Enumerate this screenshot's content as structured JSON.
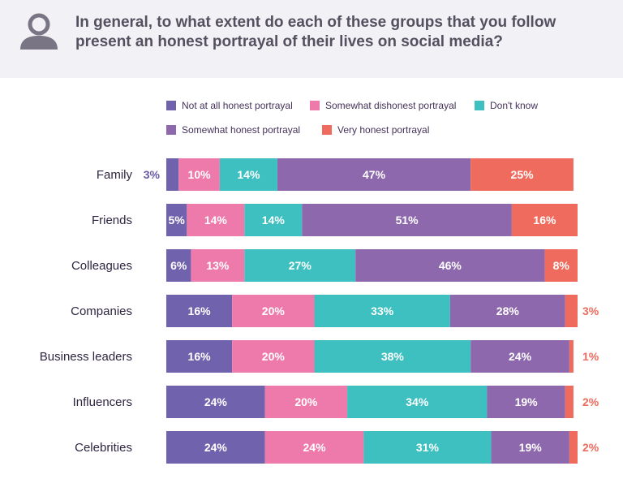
{
  "title": "In general, to what extent do each of these groups that you follow present an honest portrayal of their lives on social media?",
  "icons": {
    "header": "person-icon"
  },
  "colors": {
    "not_at_all": "#7062ad",
    "somewhat_dishonest": "#ee7aab",
    "dont_know": "#3ec0c0",
    "somewhat_honest": "#8e68ad",
    "very_honest": "#ef6b5e",
    "outside_label_dark": "#6a5aa5",
    "outside_label_red": "#ef6b5e"
  },
  "chart_data": {
    "type": "bar",
    "orientation": "horizontal",
    "stacked": true,
    "stacked_100": true,
    "title": "In general, to what extent do each of these groups that you follow present an honest portrayal of their lives on social media?",
    "legend_position": "top",
    "grid": false,
    "xlim": [
      0,
      100
    ],
    "categories": [
      "Family",
      "Friends",
      "Colleagues",
      "Companies",
      "Business leaders",
      "Influencers",
      "Celebrities"
    ],
    "series": [
      {
        "name": "Not at all honest portrayal",
        "key": "not_at_all",
        "values": [
          3,
          5,
          6,
          16,
          16,
          24,
          24
        ]
      },
      {
        "name": "Somewhat dishonest portrayal",
        "key": "somewhat_dishonest",
        "values": [
          10,
          14,
          13,
          20,
          20,
          20,
          24
        ]
      },
      {
        "name": "Don't know",
        "key": "dont_know",
        "values": [
          14,
          14,
          27,
          33,
          38,
          34,
          31
        ]
      },
      {
        "name": "Somewhat honest portrayal",
        "key": "somewhat_honest",
        "values": [
          47,
          51,
          46,
          28,
          24,
          19,
          19
        ]
      },
      {
        "name": "Very honest portrayal",
        "key": "very_honest",
        "values": [
          25,
          16,
          8,
          3,
          1,
          2,
          2
        ]
      }
    ]
  }
}
